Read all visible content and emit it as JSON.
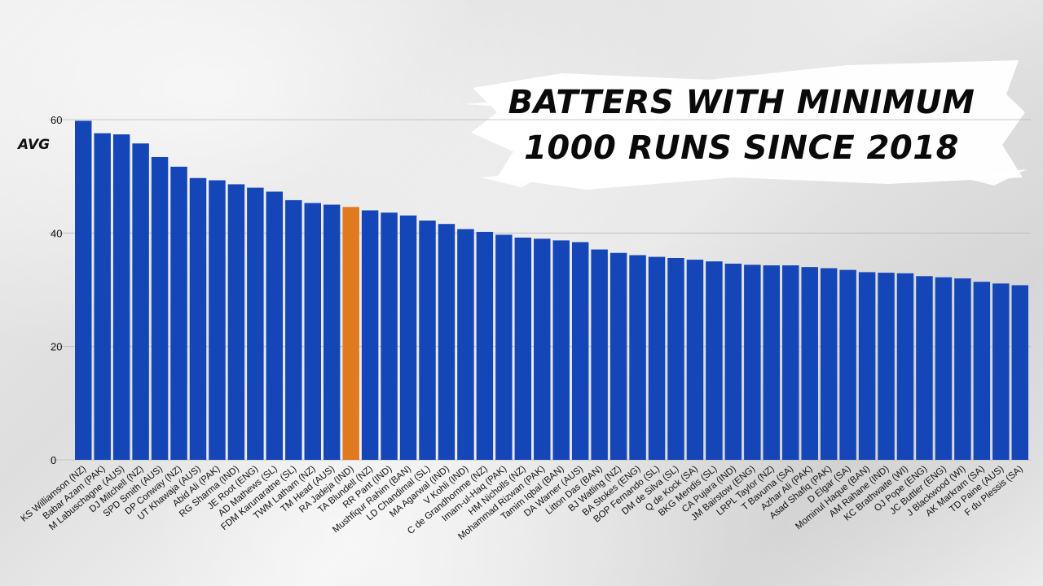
{
  "title": "BATTERS WITH MINIMUM\n1000 RUNS SINCE 2018",
  "ylabel": "AVG",
  "colors": {
    "bar": "#1446b8",
    "highlight": "#e07a20",
    "text": "#111111"
  },
  "chart_data": {
    "type": "bar",
    "title": "BATTERS WITH MINIMUM 1000 RUNS SINCE 2018",
    "xlabel": "",
    "ylabel": "AVG",
    "ylim": [
      0,
      60
    ],
    "yticks": [
      0,
      20,
      40,
      60
    ],
    "grid": true,
    "highlight_category": "RA Jadeja (IND)",
    "categories": [
      "KS Williamson (NZ)",
      "Babar Azam (PAK)",
      "M Labuschagne (AUS)",
      "DJ Mitchell (NZ)",
      "SPD Smith (AUS)",
      "DP Conway (NZ)",
      "UT Khawaja (AUS)",
      "Abid Ali (PAK)",
      "RG Sharma (IND)",
      "JE Root (ENG)",
      "AD Mathews (SL)",
      "FDM Karunaratne (SL)",
      "TWM Latham (NZ)",
      "TM Head (AUS)",
      "RA Jadeja (IND)",
      "TA Blundell (NZ)",
      "RR Pant (IND)",
      "Mushfiqur Rahim (BAN)",
      "LD Chandimal (SL)",
      "MA Agarwal (IND)",
      "V Kohli (IND)",
      "C de Grandhomme (NZ)",
      "Imam-ul-Haq (PAK)",
      "HM Nicholls (NZ)",
      "Mohammad Rizwan (PAK)",
      "Tamim Iqbal (BAN)",
      "DA Warner (AUS)",
      "Litton Das (BAN)",
      "BJ Watling (NZ)",
      "BA Stokes (ENG)",
      "BOP Fernando (SL)",
      "DM de Silva (SL)",
      "Q de Kock (SA)",
      "BKG Mendis (SL)",
      "CA Pujara (IND)",
      "JM Bairstow (ENG)",
      "LRPL Taylor (NZ)",
      "T Bavuma (SA)",
      "Azhar Ali (PAK)",
      "Asad Shafiq (PAK)",
      "D Elgar (SA)",
      "Mominul Haque (BAN)",
      "AM Rahane (IND)",
      "KC Brathwaite (WI)",
      "OJ Pope (ENG)",
      "JC Buttler (ENG)",
      "J Blackwood (WI)",
      "AK Markram (SA)",
      "TD Paine (AUS)",
      "F du Plessis (SA)"
    ],
    "values": [
      59.8,
      57.6,
      57.4,
      55.8,
      53.4,
      51.7,
      49.7,
      49.3,
      48.6,
      48.0,
      47.3,
      45.8,
      45.3,
      45.0,
      44.6,
      44.0,
      43.6,
      43.1,
      42.2,
      41.6,
      40.7,
      40.2,
      39.7,
      39.2,
      39.0,
      38.7,
      38.4,
      37.1,
      36.5,
      36.1,
      35.8,
      35.6,
      35.3,
      35.0,
      34.6,
      34.4,
      34.3,
      34.3,
      34.0,
      33.8,
      33.5,
      33.1,
      33.0,
      32.9,
      32.4,
      32.2,
      32.0,
      31.4,
      31.1,
      30.8
    ]
  }
}
